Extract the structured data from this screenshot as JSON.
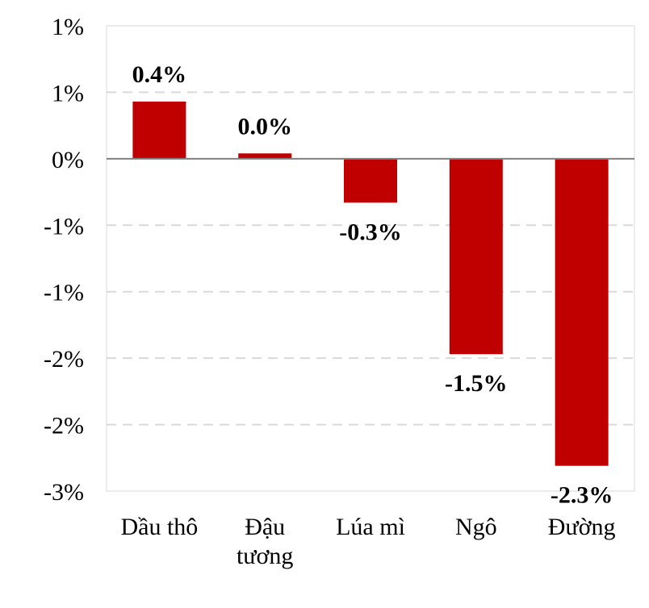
{
  "chart_data": {
    "type": "bar",
    "title": "",
    "xlabel": "",
    "ylabel": "",
    "categories": [
      [
        "Dầu thô"
      ],
      [
        "Đậu",
        "tương"
      ],
      [
        "Lúa mì"
      ],
      [
        "Ngô"
      ],
      [
        "Đường"
      ]
    ],
    "values": [
      0.43,
      0.04,
      -0.33,
      -1.47,
      -2.31
    ],
    "data_labels": [
      "0.4%",
      "0.0%",
      "-0.3%",
      "-1.5%",
      "-2.3%"
    ],
    "ylim": [
      -2.5,
      1.0
    ],
    "yticks": [
      1.0,
      0.5,
      0.0,
      -0.5,
      -1.0,
      -1.5,
      -2.0,
      -2.5
    ],
    "ytick_labels": [
      "1%",
      "1%",
      "0%",
      "-1%",
      "-1%",
      "-2%",
      "-2%",
      "-3%"
    ],
    "grid": true,
    "legend": "none",
    "colors": {
      "bar": "#c00000",
      "grid": "#d9d9d9",
      "axis": "#808080",
      "frame": "#d9d9d9"
    }
  }
}
